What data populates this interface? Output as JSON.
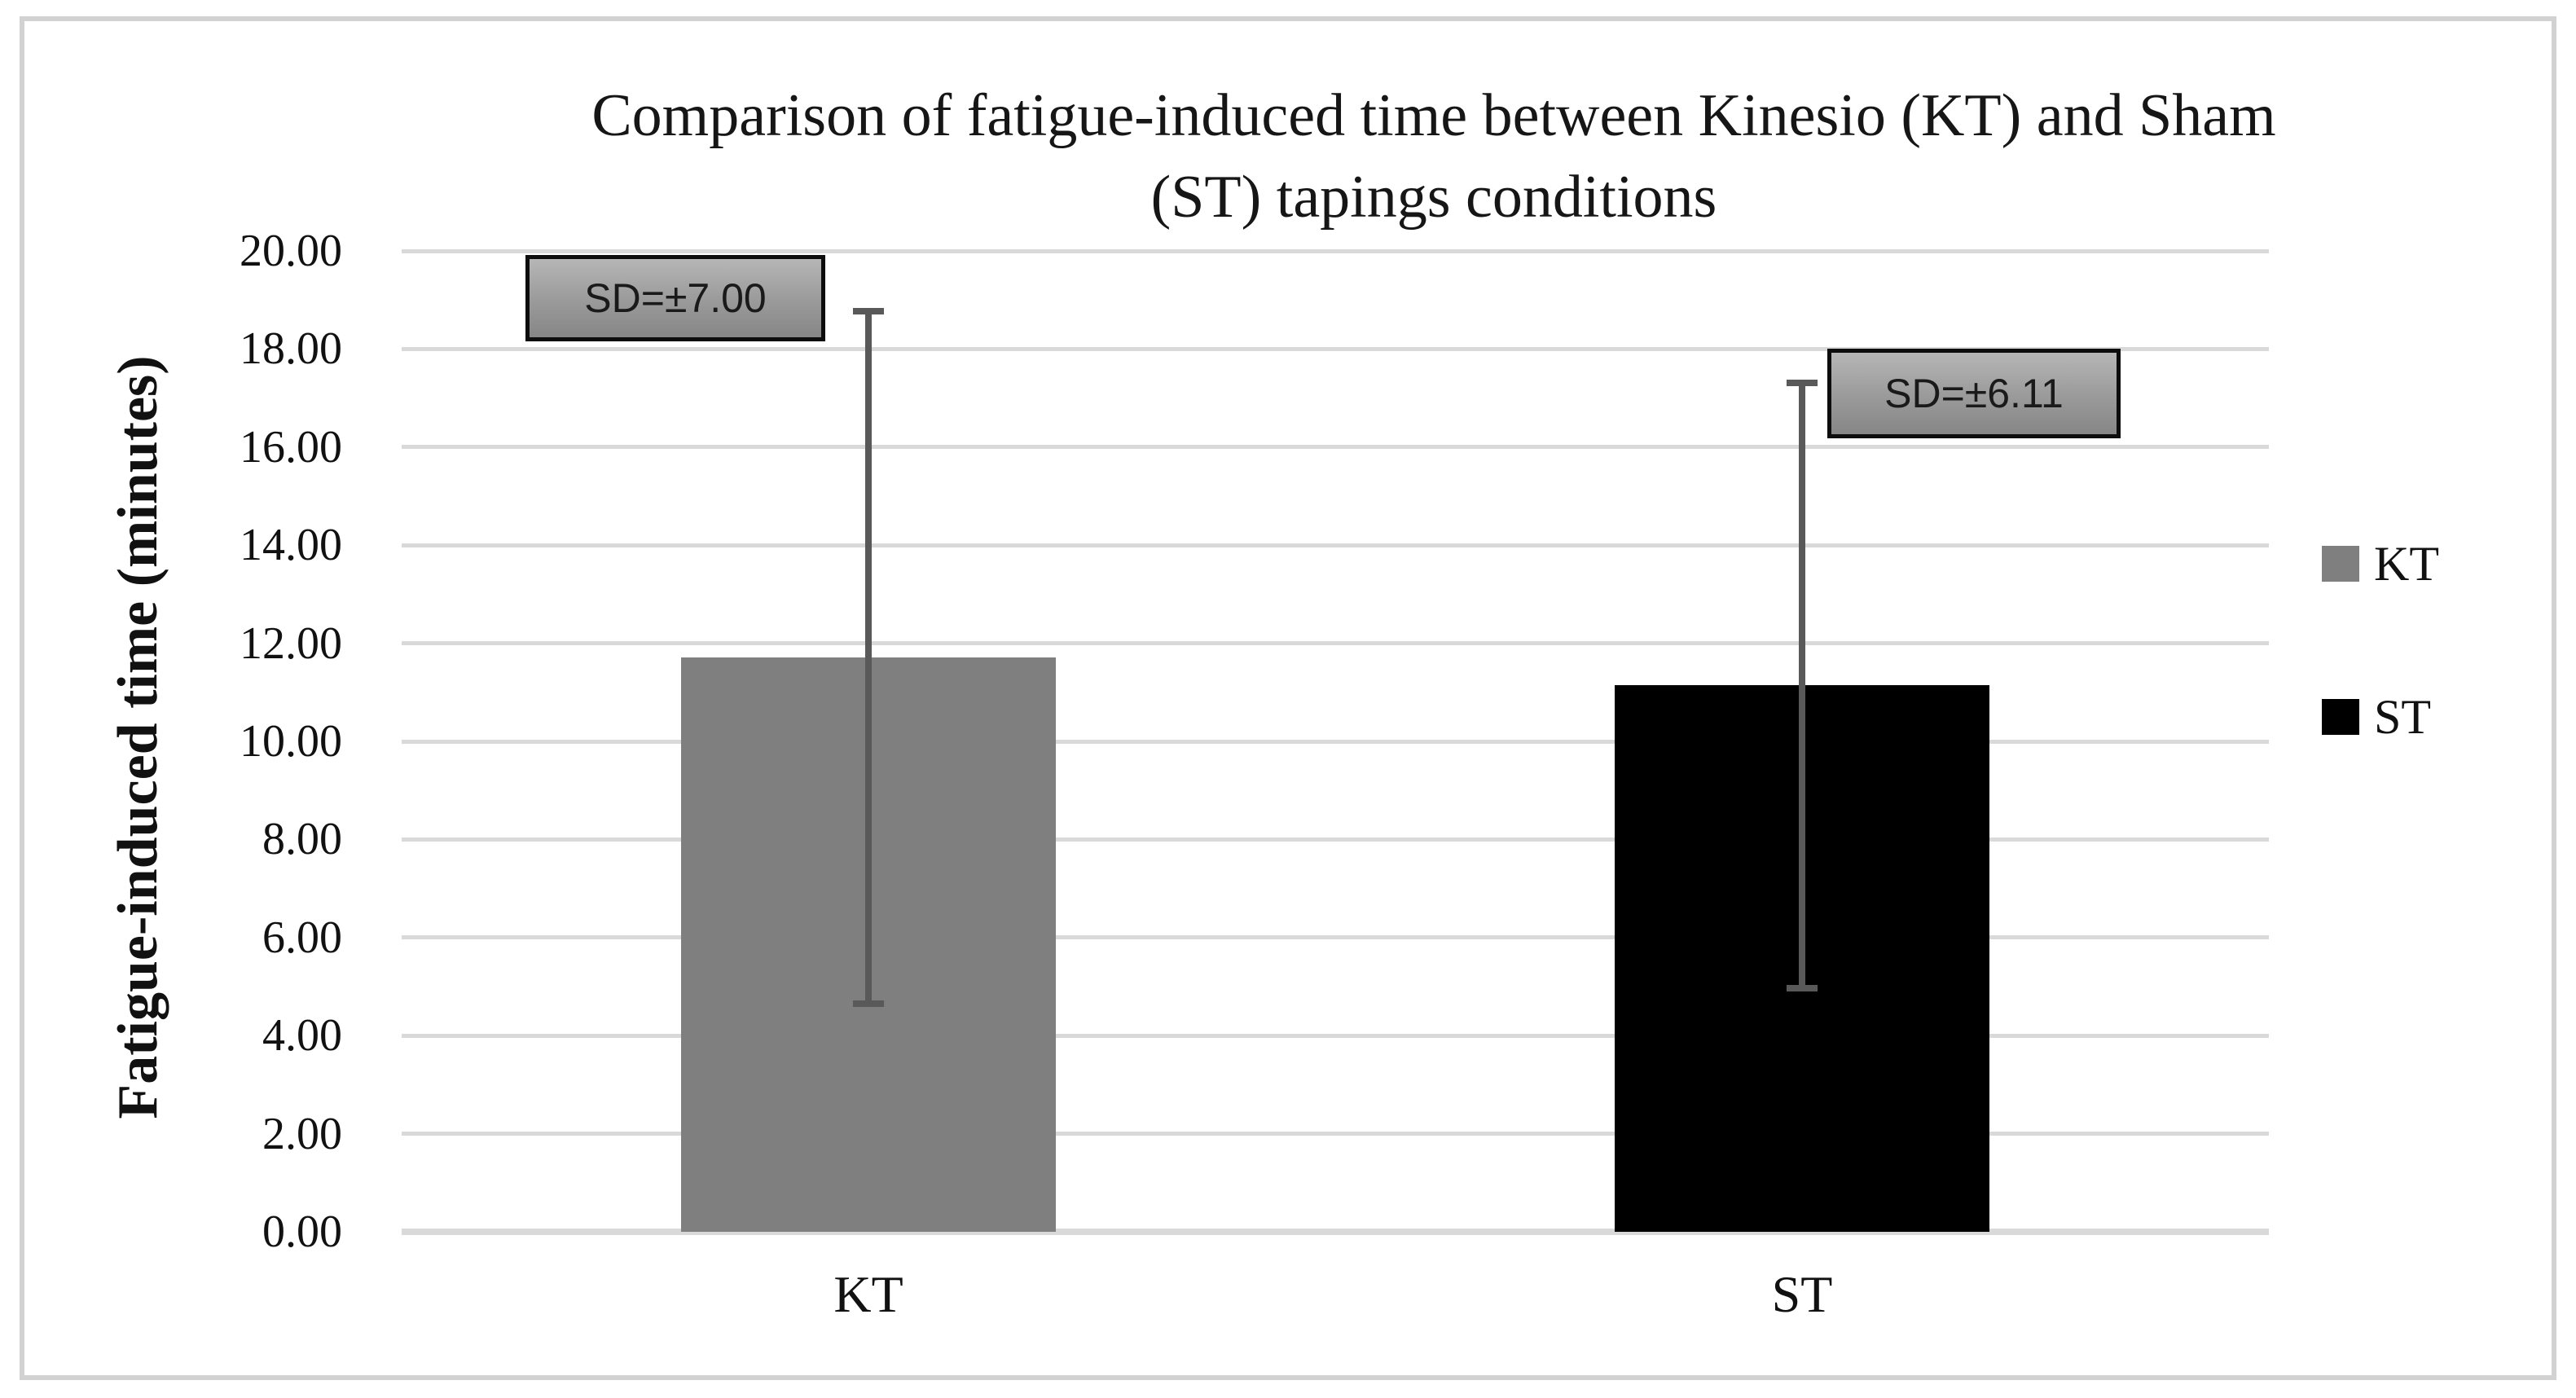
{
  "chart_data": {
    "type": "bar",
    "title": "Comparison of fatigue-induced time between Kinesio (KT) and Sham (ST) tapings conditions",
    "title_line1": "Comparison of fatigue-induced time between Kinesio (KT) and Sham",
    "title_line2": "(ST) tapings conditions",
    "ylabel": "Fatigue-induced time (minutes)",
    "xlabel": "",
    "ylim": [
      0,
      20
    ],
    "ytick_values": [
      0,
      2,
      4,
      6,
      8,
      10,
      12,
      14,
      16,
      18,
      20
    ],
    "ytick_labels": [
      "0.00",
      "2.00",
      "4.00",
      "6.00",
      "8.00",
      "10.00",
      "12.00",
      "14.00",
      "16.00",
      "18.00",
      "20.00"
    ],
    "categories": [
      "KT",
      "ST"
    ],
    "series": [
      {
        "name": "KT",
        "value": 11.71,
        "sd": 7.0,
        "color": "#7f7f7f",
        "annotation": "SD=±7.00"
      },
      {
        "name": "ST",
        "value": 11.14,
        "sd": 6.11,
        "color": "#000000",
        "annotation": "SD=±6.11"
      }
    ],
    "legend": [
      {
        "label": "KT",
        "color": "#7f7f7f"
      },
      {
        "label": "ST",
        "color": "#000000"
      }
    ],
    "grid": true,
    "legend_position": "right",
    "error_bar_color": "#595959",
    "gridline_color": "#d9d9d9"
  }
}
